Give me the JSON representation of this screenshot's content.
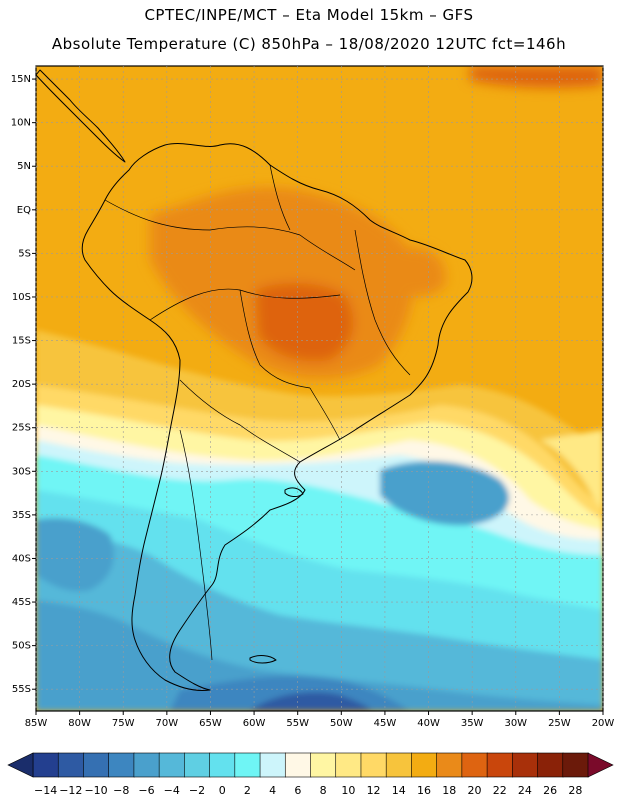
{
  "header": {
    "line1": "CPTEC/INPE/MCT –  Eta Model 15km – GFS",
    "line2": "Absolute Temperature (C) 850hPa – 18/08/2020 12UTC fct=146h"
  },
  "map": {
    "lon_ticks": [
      "85W",
      "80W",
      "75W",
      "70W",
      "65W",
      "60W",
      "55W",
      "50W",
      "45W",
      "40W",
      "35W",
      "30W",
      "25W",
      "20W"
    ],
    "lat_ticks": [
      "15N",
      "10N",
      "5N",
      "EQ",
      "5S",
      "10S",
      "15S",
      "20S",
      "25S",
      "30S",
      "35S",
      "40S",
      "45S",
      "50S",
      "55S"
    ],
    "lon_range_deg": [
      -85,
      -20
    ],
    "lat_range_deg": [
      -57.5,
      16.5
    ]
  },
  "colorbar": {
    "labels": [
      "-14",
      "-12",
      "-10",
      "-8",
      "-6",
      "-4",
      "-2",
      "0",
      "2",
      "4",
      "6",
      "8",
      "10",
      "12",
      "14",
      "16",
      "18",
      "20",
      "22",
      "24",
      "26",
      "28"
    ],
    "colors": [
      "#233f8f",
      "#2e5aa3",
      "#3570b2",
      "#3d86c0",
      "#4aa0cc",
      "#55b8d9",
      "#5fcfe3",
      "#63e1ee",
      "#6ff5f5",
      "#cdf5fb",
      "#fff8e6",
      "#fff6a3",
      "#ffe985",
      "#ffd966",
      "#f7c43c",
      "#f3ac12",
      "#ea8a19",
      "#de6411",
      "#c9460c",
      "#a8300a",
      "#8a2208",
      "#6b1a0a"
    ],
    "low_arrow_color": "#1a2d6b",
    "high_arrow_color": "#7a0a2a"
  },
  "colors": {
    "ocean_cold": "#3d86c0",
    "ocean_warm": "#f3ac12",
    "border_line": "#000000",
    "grid_line": "#9a9a9a"
  }
}
